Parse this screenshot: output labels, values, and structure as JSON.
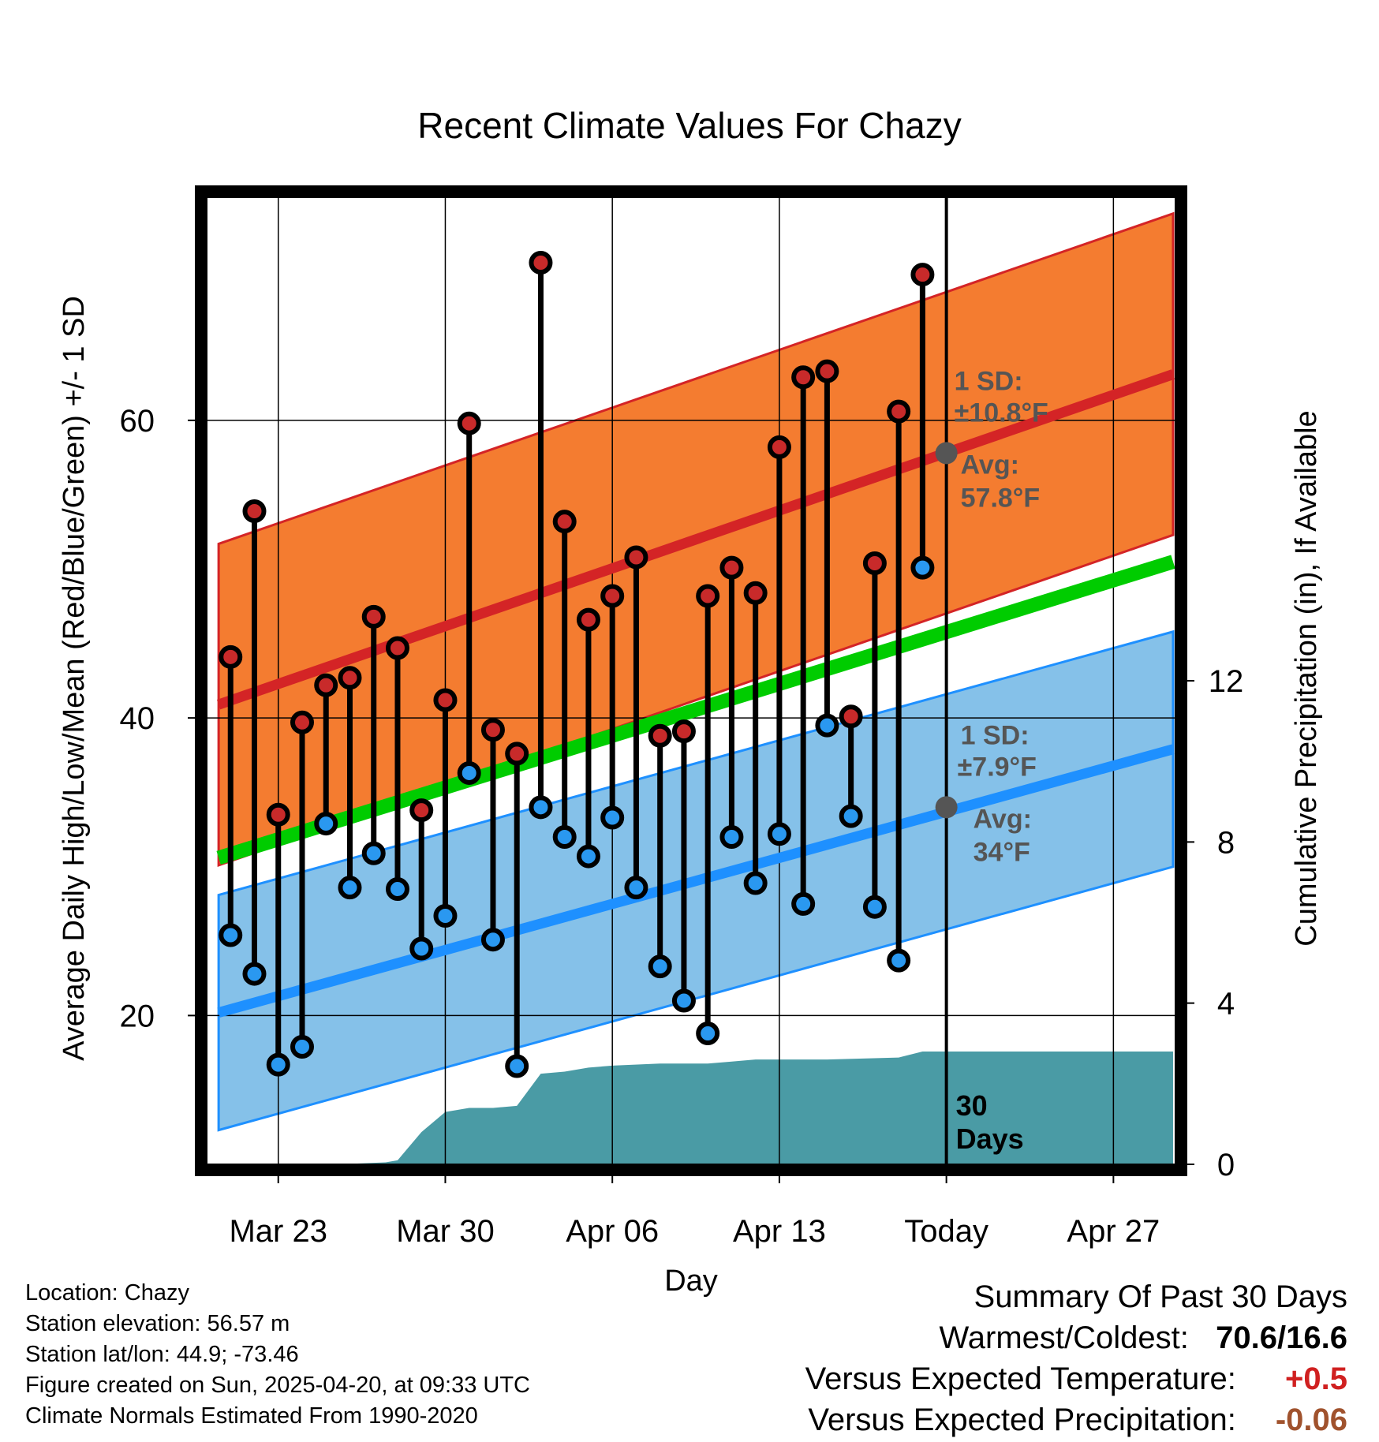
{
  "chart_data": {
    "type": "line",
    "title": "Recent Climate Values For Chazy",
    "xlabel": "Day",
    "ylabel": "Average Daily High/Low/Mean (Red/Blue/Green) +/- 1 SD",
    "y2label": "Cumulative Precipitation (in), If Available",
    "ylim": [
      10,
      75
    ],
    "y2lim": [
      0,
      24
    ],
    "yticks": [
      20,
      40,
      60
    ],
    "y2ticks": [
      0,
      4,
      8,
      12
    ],
    "xtick_labels": [
      {
        "day": 22,
        "label": "Mar 23"
      },
      {
        "day": 29,
        "label": "Mar 30"
      },
      {
        "day": 36,
        "label": "Apr 06"
      },
      {
        "day": 43,
        "label": "Apr 13"
      },
      {
        "day": 50,
        "label": "Today"
      },
      {
        "day": 57,
        "label": "Apr 27"
      }
    ],
    "xlim": [
      19,
      59.6
    ],
    "today_day": 50,
    "window_start_day": 19.5,
    "days": [
      20,
      21,
      22,
      23,
      24,
      25,
      26,
      27,
      28,
      29,
      30,
      31,
      32,
      33,
      34,
      35,
      36,
      37,
      38,
      39,
      40,
      41,
      42,
      43,
      44,
      45,
      46,
      47,
      48,
      49
    ],
    "highs": [
      44.1,
      53.9,
      33.5,
      39.7,
      42.2,
      42.7,
      46.8,
      44.7,
      33.8,
      41.2,
      59.8,
      39.2,
      37.6,
      70.6,
      53.2,
      46.6,
      48.2,
      50.8,
      38.8,
      39.1,
      48.2,
      50.1,
      48.4,
      58.2,
      62.9,
      63.3,
      40.1,
      50.4,
      60.6,
      69.8
    ],
    "lows": [
      25.4,
      22.8,
      16.7,
      17.9,
      32.9,
      28.6,
      30.9,
      28.5,
      24.5,
      26.7,
      36.3,
      25.1,
      16.6,
      34.0,
      32.0,
      30.7,
      33.3,
      28.6,
      23.3,
      21.0,
      18.8,
      32.0,
      28.9,
      32.2,
      27.5,
      39.5,
      33.4,
      27.3,
      23.7,
      50.1
    ],
    "normal_high": {
      "days": [
        19.5,
        59.5
      ],
      "values": [
        40.9,
        63.1
      ]
    },
    "normal_high_sd": 10.8,
    "normal_low": {
      "days": [
        19.5,
        59.5
      ],
      "values": [
        20.2,
        37.9
      ]
    },
    "normal_low_sd": 7.9,
    "normal_mean": {
      "days": [
        19.5,
        59.5
      ],
      "values": [
        30.6,
        50.5
      ]
    },
    "precip": {
      "days": [
        19.5,
        24.5,
        26.5,
        27,
        28,
        29,
        30,
        31,
        32,
        33,
        34,
        35,
        36,
        38,
        40,
        41,
        42,
        45,
        48,
        49,
        59.5
      ],
      "values": [
        0,
        0,
        0.05,
        0.1,
        0.8,
        1.3,
        1.4,
        1.4,
        1.45,
        2.25,
        2.3,
        2.4,
        2.45,
        2.5,
        2.5,
        2.55,
        2.6,
        2.6,
        2.65,
        2.8,
        2.8
      ]
    },
    "annotations": {
      "high_sd_label": "1 SD:",
      "high_sd_value": "±10.8°F",
      "high_avg_label": "Avg:",
      "high_avg_value": "57.8°F",
      "today_high_avg": 57.8,
      "low_sd_label": "1 SD:",
      "low_sd_value": "±7.9°F",
      "low_avg_label": "Avg:",
      "low_avg_value": "34°F",
      "today_low_avg": 34,
      "days_count": "30",
      "days_word": "Days"
    },
    "colors": {
      "high_band": "#f47c30",
      "high_line": "#d42426",
      "low_band": "#85c1e9",
      "low_line": "#1e90ff",
      "mean_line": "#00cc00",
      "precip": "#4a9ba5",
      "high_marker": "#c82a2a",
      "low_marker": "#2a98f0"
    }
  },
  "footer": {
    "location": "Location: Chazy",
    "elevation": "Station elevation: 56.57 m",
    "latlon": "Station lat/lon: 44.9; -73.46",
    "created": "Figure created on Sun, 2025-04-20, at 09:33 UTC",
    "normals": "Climate Normals Estimated From 1990-2020"
  },
  "summary": {
    "heading": "Summary Of Past 30 Days",
    "warm_cold_label": "Warmest/Coldest:",
    "warm_cold_value": "70.6/16.6",
    "temp_label": "Versus Expected Temperature:",
    "temp_value": "+0.5",
    "temp_color": "#d02020",
    "precip_label": "Versus Expected Precipitation:",
    "precip_value": "-0.06",
    "precip_color": "#a0522d"
  }
}
